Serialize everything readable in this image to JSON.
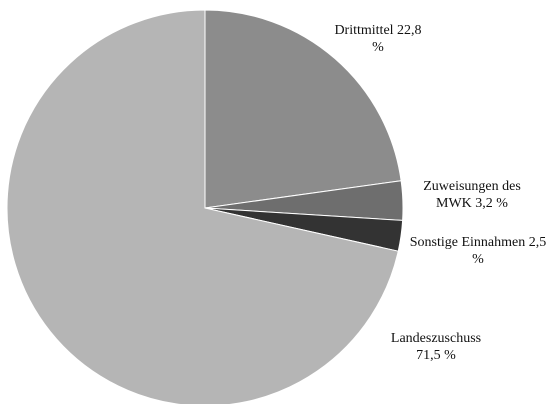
{
  "chart_data": {
    "type": "pie",
    "categories": [
      "Drittmittel",
      "Zuweisungen des MWK",
      "Sonstige Einnahmen",
      "Landeszuschuss"
    ],
    "values": [
      22.8,
      3.2,
      2.5,
      71.5
    ],
    "value_labels": [
      "22,8 %",
      "3,2 %",
      "2,5 %",
      "71,5 %"
    ],
    "colors": [
      "#8c8c8c",
      "#6e6e6e",
      "#333333",
      "#b5b5b5"
    ]
  }
}
